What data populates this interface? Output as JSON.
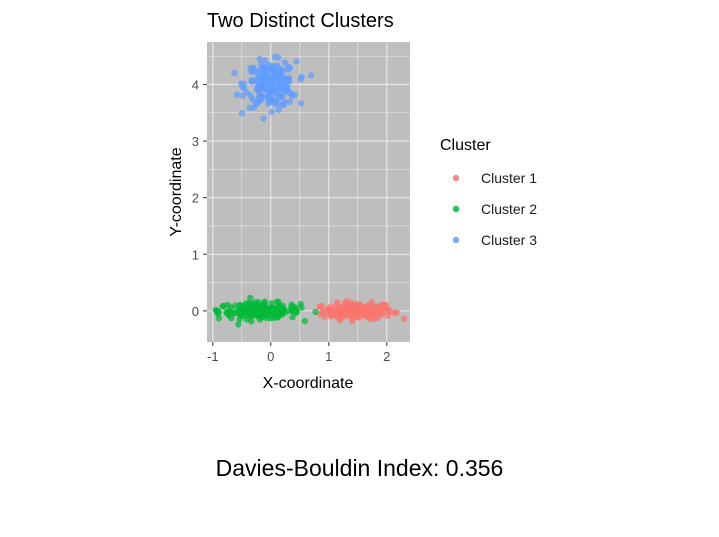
{
  "chart_data": {
    "type": "scatter",
    "title": "Two Distinct Clusters",
    "xlabel": "X-coordinate",
    "ylabel": "Y-coordinate",
    "xlim": [
      -1.1,
      2.4
    ],
    "ylim": [
      -0.55,
      4.75
    ],
    "x_ticks": [
      -1,
      0,
      1,
      2
    ],
    "x_tick_labels": [
      "-1",
      "0",
      "1",
      "2"
    ],
    "y_ticks": [
      0,
      1,
      2,
      3,
      4
    ],
    "y_tick_labels": [
      "0",
      "1",
      "2",
      "3",
      "4"
    ],
    "grid": true,
    "panel_background": "#bebebe",
    "grid_color": "#e8e8e8",
    "legend": {
      "title": "Cluster",
      "position": "right"
    },
    "series": [
      {
        "name": "Cluster 1",
        "color": "#f8766d",
        "center": [
          1.5,
          0.0
        ],
        "sd": [
          0.3,
          0.07
        ],
        "x_range": [
          0.85,
          2.3
        ],
        "y_range": [
          -0.3,
          0.25
        ],
        "n_points": 200
      },
      {
        "name": "Cluster 2",
        "color": "#00ba38",
        "center": [
          -0.2,
          0.0
        ],
        "sd": [
          0.35,
          0.07
        ],
        "x_range": [
          -0.95,
          0.8
        ],
        "y_range": [
          -0.25,
          0.25
        ],
        "n_points": 200
      },
      {
        "name": "Cluster 3",
        "color": "#619cff",
        "center": [
          0.0,
          4.0
        ],
        "sd": [
          0.22,
          0.2
        ],
        "x_range": [
          -0.65,
          0.7
        ],
        "y_range": [
          3.4,
          4.55
        ],
        "n_points": 200
      }
    ]
  },
  "caption": {
    "text": "Davies-Bouldin Index: 0.356"
  }
}
